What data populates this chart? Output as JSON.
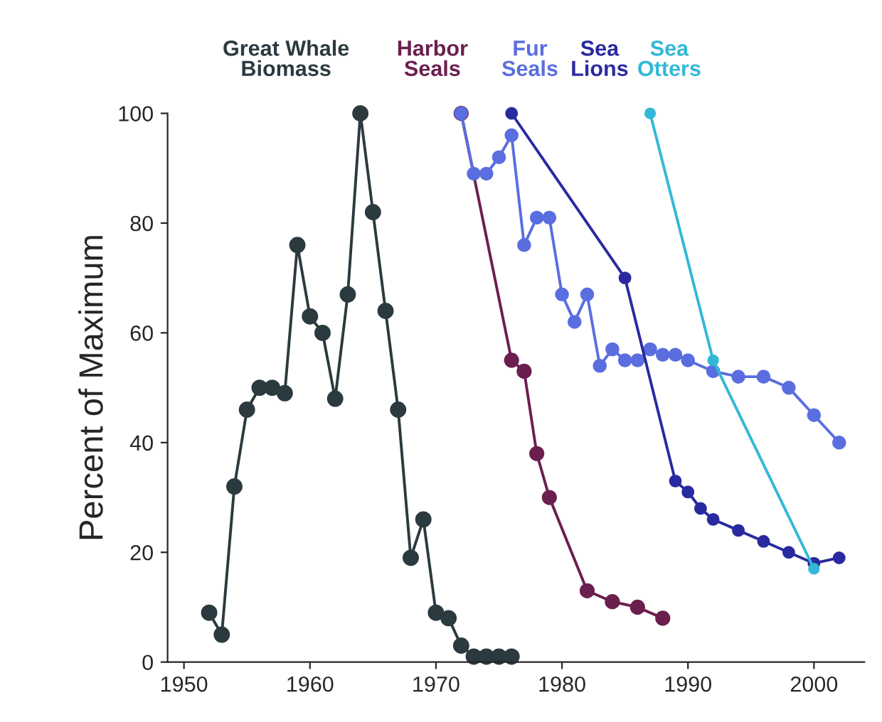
{
  "chart_data": {
    "type": "line",
    "ylabel": "Percent of Maximum",
    "xlim": [
      1948.7,
      2004
    ],
    "ylim": [
      0,
      100
    ],
    "xticks": [
      1950,
      1960,
      1970,
      1980,
      1990,
      2000
    ],
    "yticks": [
      0,
      20,
      40,
      60,
      80,
      100
    ],
    "marker": "circle",
    "line_style": "solid",
    "grid": false,
    "legend": false,
    "series": [
      {
        "name": "Great Whale\nBiomass",
        "color": "#2b3a3f",
        "x": [
          1952,
          1953,
          1954,
          1955,
          1956,
          1957,
          1958,
          1959,
          1960,
          1961,
          1962,
          1963,
          1964,
          1965,
          1966,
          1967,
          1968,
          1969,
          1970,
          1971,
          1972,
          1973,
          1974,
          1975,
          1976
        ],
        "values": [
          9,
          5,
          32,
          46,
          50,
          50,
          49,
          76,
          63,
          60,
          48,
          67,
          100,
          82,
          64,
          46,
          19,
          26,
          9,
          8,
          3,
          1,
          1,
          1,
          1
        ]
      },
      {
        "name": "Harbor\nSeals",
        "color": "#6b1f4f",
        "x": [
          1972,
          1976,
          1977,
          1978,
          1979,
          1982,
          1984,
          1986,
          1988
        ],
        "values": [
          100,
          55,
          53,
          38,
          30,
          13,
          11,
          10,
          8
        ]
      },
      {
        "name": "Fur\nSeals",
        "color": "#5a6ee0",
        "x": [
          1972,
          1973,
          1974,
          1975,
          1976,
          1977,
          1978,
          1979,
          1980,
          1981,
          1982,
          1983,
          1984,
          1985,
          1986,
          1987,
          1988,
          1989,
          1990,
          1992,
          1994,
          1996,
          1998,
          2000,
          2002
        ],
        "values": [
          100,
          89,
          89,
          92,
          96,
          76,
          81,
          81,
          67,
          62,
          67,
          54,
          57,
          55,
          55,
          57,
          56,
          56,
          55,
          53,
          52,
          52,
          50,
          45,
          40
        ]
      },
      {
        "name": "Sea\nLions",
        "color": "#2a2aa0",
        "x": [
          1976,
          1985,
          1989,
          1990,
          1991,
          1992,
          1994,
          1996,
          1998,
          2000,
          2002
        ],
        "values": [
          100,
          70,
          33,
          31,
          28,
          26,
          24,
          22,
          20,
          18,
          19
        ]
      },
      {
        "name": "Sea\nOtters",
        "color": "#33b8d6",
        "x": [
          1987,
          1992,
          2000
        ],
        "values": [
          100,
          55,
          17
        ]
      }
    ]
  }
}
